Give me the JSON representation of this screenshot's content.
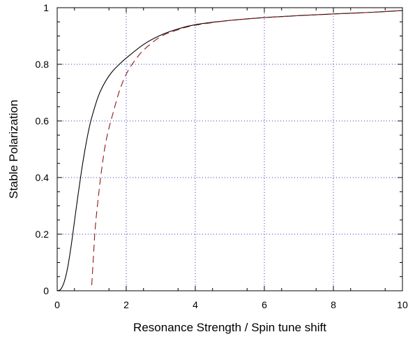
{
  "chart_data": {
    "type": "line",
    "title": "",
    "xlabel": "Resonance Strength / Spin tune shift",
    "ylabel": "Stable Polarization",
    "xlim": [
      0,
      10
    ],
    "ylim": [
      0,
      1
    ],
    "grid": true,
    "legend": "none",
    "x_ticks": [
      "0",
      "2",
      "4",
      "6",
      "8",
      "10"
    ],
    "y_ticks": [
      "0",
      "0.2",
      "0.4",
      "0.6",
      "0.8",
      "1"
    ],
    "series": [
      {
        "style": "solid",
        "color": "#000000",
        "x": [
          0,
          0.1,
          0.2,
          0.3,
          0.4,
          0.5,
          0.6,
          0.7,
          0.8,
          0.9,
          1.0,
          1.2,
          1.4,
          1.6,
          1.8,
          2.0,
          2.5,
          3.0,
          3.5,
          4.0,
          5.0,
          6.0,
          7.0,
          8.0,
          9.0,
          10.0
        ],
        "y": [
          0,
          0.005,
          0.03,
          0.08,
          0.155,
          0.245,
          0.335,
          0.42,
          0.495,
          0.56,
          0.612,
          0.69,
          0.74,
          0.775,
          0.8,
          0.822,
          0.87,
          0.903,
          0.925,
          0.94,
          0.955,
          0.965,
          0.972,
          0.978,
          0.983,
          0.99
        ]
      },
      {
        "style": "dashed",
        "color": "#8b1a1a",
        "x": [
          1.0,
          1.05,
          1.1,
          1.2,
          1.3,
          1.4,
          1.5,
          1.6,
          1.8,
          2.0,
          2.2,
          2.5,
          3.0,
          3.5,
          4.0,
          5.0,
          6.0,
          7.0,
          8.0,
          9.0,
          10.0
        ],
        "y": [
          0.02,
          0.12,
          0.22,
          0.34,
          0.44,
          0.52,
          0.575,
          0.62,
          0.705,
          0.765,
          0.805,
          0.85,
          0.898,
          0.922,
          0.938,
          0.955,
          0.965,
          0.972,
          0.978,
          0.983,
          0.99
        ]
      }
    ]
  },
  "colors": {
    "grid": "#3333cc",
    "frame": "#000000"
  }
}
